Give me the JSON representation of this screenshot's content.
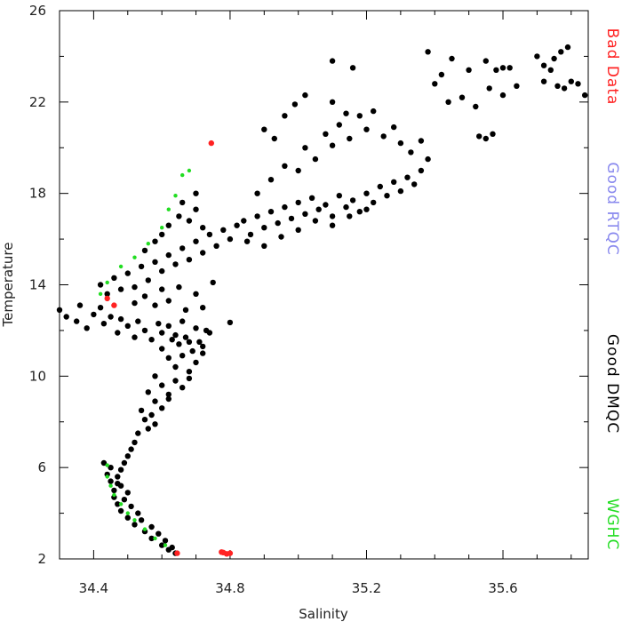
{
  "chart_data": {
    "type": "scatter",
    "title": "",
    "xlabel": "Salinity",
    "ylabel": "Temperature",
    "xlim": [
      34.3,
      35.85
    ],
    "ylim": [
      2,
      26
    ],
    "xticks": [
      34.4,
      34.8,
      35.2,
      35.6
    ],
    "xtick_labels": [
      "34.4",
      "34.8",
      "35.2",
      "35.6"
    ],
    "yticks": [
      2,
      6,
      10,
      14,
      18,
      22,
      26
    ],
    "ytick_labels": [
      "2",
      "6",
      "10",
      "14",
      "18",
      "22",
      "26"
    ],
    "grid": false,
    "legend_placement": "right",
    "series": [
      {
        "name": "Bad Data",
        "color": "#ff2222",
        "points": [
          [
            34.745,
            20.2
          ],
          [
            34.645,
            2.25
          ],
          [
            34.78,
            2.28
          ],
          [
            34.79,
            2.22
          ],
          [
            34.8,
            2.25
          ],
          [
            34.775,
            2.3
          ],
          [
            34.46,
            13.1
          ],
          [
            34.44,
            13.4
          ]
        ]
      },
      {
        "name": "Good RTQC",
        "color": "#8888ee",
        "points": []
      },
      {
        "name": "Good DMQC",
        "color": "#000000",
        "points": [
          [
            34.3,
            12.9
          ],
          [
            34.32,
            12.6
          ],
          [
            34.35,
            12.4
          ],
          [
            34.36,
            13.1
          ],
          [
            34.38,
            12.1
          ],
          [
            34.4,
            12.7
          ],
          [
            34.42,
            13.0
          ],
          [
            34.43,
            12.3
          ],
          [
            34.45,
            12.6
          ],
          [
            34.47,
            11.9
          ],
          [
            34.48,
            12.5
          ],
          [
            34.5,
            12.2
          ],
          [
            34.52,
            11.7
          ],
          [
            34.53,
            12.4
          ],
          [
            34.55,
            12.0
          ],
          [
            34.57,
            11.6
          ],
          [
            34.59,
            12.3
          ],
          [
            34.6,
            11.9
          ],
          [
            34.62,
            12.2
          ],
          [
            34.64,
            11.8
          ],
          [
            34.66,
            12.4
          ],
          [
            34.68,
            11.5
          ],
          [
            34.7,
            12.1
          ],
          [
            34.72,
            11.3
          ],
          [
            34.74,
            11.9
          ],
          [
            34.8,
            12.35
          ],
          [
            34.42,
            14.0
          ],
          [
            34.44,
            13.6
          ],
          [
            34.46,
            14.3
          ],
          [
            34.48,
            13.8
          ],
          [
            34.5,
            14.5
          ],
          [
            34.52,
            13.9
          ],
          [
            34.54,
            14.8
          ],
          [
            34.56,
            14.2
          ],
          [
            34.58,
            15.0
          ],
          [
            34.6,
            14.6
          ],
          [
            34.62,
            15.3
          ],
          [
            34.64,
            14.9
          ],
          [
            34.66,
            15.6
          ],
          [
            34.68,
            15.1
          ],
          [
            34.7,
            15.9
          ],
          [
            34.72,
            15.4
          ],
          [
            34.74,
            16.2
          ],
          [
            34.76,
            15.7
          ],
          [
            34.78,
            16.4
          ],
          [
            34.8,
            16.0
          ],
          [
            34.82,
            16.6
          ],
          [
            34.52,
            13.2
          ],
          [
            34.55,
            13.5
          ],
          [
            34.58,
            13.1
          ],
          [
            34.6,
            13.8
          ],
          [
            34.62,
            13.3
          ],
          [
            34.65,
            13.9
          ],
          [
            34.67,
            12.9
          ],
          [
            34.7,
            13.6
          ],
          [
            34.72,
            13.0
          ],
          [
            34.75,
            14.1
          ],
          [
            34.55,
            15.5
          ],
          [
            34.58,
            15.9
          ],
          [
            34.6,
            16.2
          ],
          [
            34.62,
            16.6
          ],
          [
            34.65,
            17.0
          ],
          [
            34.68,
            16.8
          ],
          [
            34.7,
            17.3
          ],
          [
            34.72,
            16.5
          ],
          [
            34.66,
            17.6
          ],
          [
            34.7,
            18.0
          ],
          [
            34.84,
            16.8
          ],
          [
            34.86,
            16.2
          ],
          [
            34.88,
            17.0
          ],
          [
            34.9,
            16.5
          ],
          [
            34.92,
            17.2
          ],
          [
            34.94,
            16.7
          ],
          [
            34.96,
            17.4
          ],
          [
            34.98,
            16.9
          ],
          [
            35.0,
            17.6
          ],
          [
            35.02,
            17.1
          ],
          [
            35.04,
            17.8
          ],
          [
            35.06,
            17.3
          ],
          [
            35.08,
            17.5
          ],
          [
            35.1,
            17.0
          ],
          [
            35.12,
            17.9
          ],
          [
            35.14,
            17.4
          ],
          [
            35.16,
            17.7
          ],
          [
            35.18,
            17.2
          ],
          [
            35.2,
            18.0
          ],
          [
            35.22,
            17.6
          ],
          [
            35.24,
            18.3
          ],
          [
            35.26,
            17.9
          ],
          [
            35.28,
            18.5
          ],
          [
            35.3,
            18.1
          ],
          [
            35.32,
            18.7
          ],
          [
            35.34,
            18.4
          ],
          [
            35.36,
            19.0
          ],
          [
            35.38,
            19.5
          ],
          [
            34.85,
            15.9
          ],
          [
            34.9,
            15.7
          ],
          [
            34.95,
            16.1
          ],
          [
            35.0,
            16.4
          ],
          [
            35.05,
            16.8
          ],
          [
            35.1,
            16.6
          ],
          [
            35.15,
            17.0
          ],
          [
            35.2,
            17.3
          ],
          [
            34.88,
            18.0
          ],
          [
            34.92,
            18.6
          ],
          [
            34.96,
            19.2
          ],
          [
            35.0,
            19.0
          ],
          [
            35.02,
            20.0
          ],
          [
            35.05,
            19.5
          ],
          [
            35.08,
            20.6
          ],
          [
            35.1,
            20.1
          ],
          [
            35.12,
            21.0
          ],
          [
            35.15,
            20.4
          ],
          [
            35.18,
            21.4
          ],
          [
            35.2,
            20.8
          ],
          [
            35.22,
            21.6
          ],
          [
            35.25,
            20.5
          ],
          [
            35.28,
            20.9
          ],
          [
            35.3,
            20.2
          ],
          [
            35.33,
            19.8
          ],
          [
            35.36,
            20.3
          ],
          [
            34.96,
            21.4
          ],
          [
            34.99,
            21.9
          ],
          [
            35.02,
            22.3
          ],
          [
            34.93,
            20.4
          ],
          [
            34.9,
            20.8
          ],
          [
            35.1,
            22.0
          ],
          [
            35.14,
            21.5
          ],
          [
            35.1,
            23.8
          ],
          [
            35.16,
            23.5
          ],
          [
            35.38,
            24.2
          ],
          [
            35.42,
            23.2
          ],
          [
            35.45,
            23.9
          ],
          [
            35.5,
            23.4
          ],
          [
            35.55,
            23.8
          ],
          [
            35.58,
            23.4
          ],
          [
            35.6,
            23.5
          ],
          [
            35.62,
            23.5
          ],
          [
            35.4,
            22.8
          ],
          [
            35.44,
            22.0
          ],
          [
            35.48,
            22.2
          ],
          [
            35.52,
            21.8
          ],
          [
            35.56,
            22.6
          ],
          [
            35.6,
            22.3
          ],
          [
            35.64,
            22.7
          ],
          [
            35.53,
            20.5
          ],
          [
            35.55,
            20.4
          ],
          [
            35.57,
            20.6
          ],
          [
            35.7,
            24.0
          ],
          [
            35.72,
            23.6
          ],
          [
            35.75,
            23.9
          ],
          [
            35.77,
            24.2
          ],
          [
            35.79,
            24.4
          ],
          [
            35.72,
            22.9
          ],
          [
            35.76,
            22.7
          ],
          [
            35.8,
            22.9
          ],
          [
            35.82,
            22.8
          ],
          [
            35.84,
            22.3
          ],
          [
            35.78,
            22.6
          ],
          [
            35.74,
            23.4
          ],
          [
            34.6,
            11.2
          ],
          [
            34.62,
            10.8
          ],
          [
            34.64,
            10.4
          ],
          [
            34.66,
            10.9
          ],
          [
            34.68,
            10.2
          ],
          [
            34.7,
            10.6
          ],
          [
            34.72,
            11.0
          ],
          [
            34.63,
            11.6
          ],
          [
            34.65,
            11.4
          ],
          [
            34.67,
            11.7
          ],
          [
            34.69,
            11.1
          ],
          [
            34.71,
            11.5
          ],
          [
            34.73,
            12.0
          ],
          [
            34.58,
            10.0
          ],
          [
            34.6,
            9.6
          ],
          [
            34.62,
            9.2
          ],
          [
            34.64,
            9.8
          ],
          [
            34.66,
            9.5
          ],
          [
            34.68,
            9.9
          ],
          [
            34.56,
            9.3
          ],
          [
            34.58,
            8.9
          ],
          [
            34.6,
            8.6
          ],
          [
            34.62,
            9.0
          ],
          [
            34.54,
            8.5
          ],
          [
            34.55,
            8.1
          ],
          [
            34.56,
            7.7
          ],
          [
            34.57,
            8.3
          ],
          [
            34.58,
            7.9
          ],
          [
            34.53,
            7.5
          ],
          [
            34.52,
            7.1
          ],
          [
            34.51,
            6.8
          ],
          [
            34.5,
            6.5
          ],
          [
            34.49,
            6.2
          ],
          [
            34.48,
            5.9
          ],
          [
            34.47,
            5.6
          ],
          [
            34.47,
            5.3
          ],
          [
            34.46,
            5.0
          ],
          [
            34.46,
            4.7
          ],
          [
            34.47,
            4.4
          ],
          [
            34.48,
            4.1
          ],
          [
            34.5,
            3.8
          ],
          [
            34.52,
            3.5
          ],
          [
            34.55,
            3.2
          ],
          [
            34.57,
            2.9
          ],
          [
            34.6,
            2.6
          ],
          [
            34.62,
            2.4
          ],
          [
            34.64,
            2.25
          ],
          [
            34.43,
            6.2
          ],
          [
            34.45,
            6.0
          ],
          [
            34.44,
            5.7
          ],
          [
            34.45,
            5.4
          ],
          [
            34.48,
            5.2
          ],
          [
            34.5,
            4.9
          ],
          [
            34.49,
            4.6
          ],
          [
            34.51,
            4.3
          ],
          [
            34.53,
            4.0
          ],
          [
            34.54,
            3.7
          ],
          [
            34.57,
            3.4
          ],
          [
            34.59,
            3.1
          ],
          [
            34.61,
            2.8
          ],
          [
            34.63,
            2.5
          ]
        ]
      },
      {
        "name": "WGHC",
        "color": "#22dd22",
        "points": [
          [
            34.66,
            18.8
          ],
          [
            34.68,
            19.0
          ],
          [
            34.64,
            17.9
          ],
          [
            34.62,
            17.3
          ],
          [
            34.6,
            16.5
          ],
          [
            34.56,
            15.8
          ],
          [
            34.52,
            15.2
          ],
          [
            34.48,
            14.8
          ],
          [
            34.44,
            14.1
          ],
          [
            34.42,
            13.6
          ],
          [
            34.44,
            5.6
          ],
          [
            34.45,
            5.2
          ],
          [
            34.46,
            4.8
          ],
          [
            34.48,
            4.4
          ],
          [
            34.5,
            4.0
          ],
          [
            34.52,
            3.7
          ],
          [
            34.55,
            3.3
          ],
          [
            34.44,
            6.1
          ],
          [
            34.58,
            2.9
          ],
          [
            34.61,
            2.6
          ]
        ]
      }
    ],
    "legend": [
      "Bad Data",
      "Good RTQC",
      "Good DMQC",
      "WGHC"
    ]
  }
}
